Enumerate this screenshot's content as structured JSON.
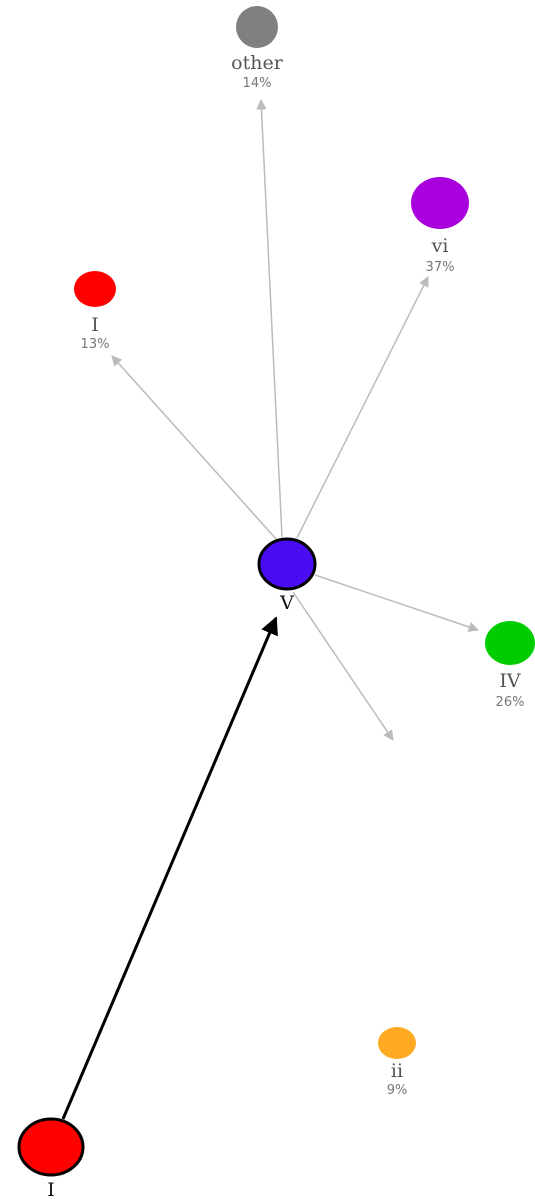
{
  "graph": {
    "current": {
      "id": "V",
      "label": "V",
      "color": "#4a0cf2"
    },
    "previous": {
      "id": "I_prev",
      "label": "I",
      "color": "#ff0000"
    },
    "next": [
      {
        "id": "other",
        "label": "other",
        "pct": "14%",
        "color": "#808080"
      },
      {
        "id": "vi",
        "label": "vi",
        "pct": "37%",
        "color": "#aa00dd"
      },
      {
        "id": "I",
        "label": "I",
        "pct": "13%",
        "color": "#ff0000"
      },
      {
        "id": "IV",
        "label": "IV",
        "pct": "26%",
        "color": "#00cc00"
      },
      {
        "id": "ii",
        "label": "ii",
        "pct": "9%",
        "color": "#ffaa22"
      }
    ],
    "edge_color": "#bbbbbb",
    "history_edge_color": "#000000"
  }
}
